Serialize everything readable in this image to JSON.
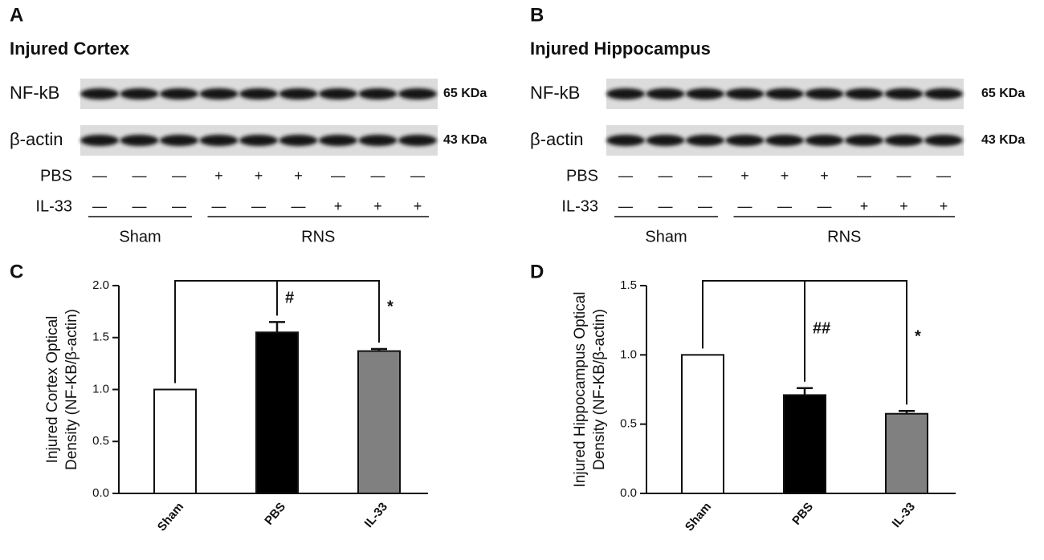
{
  "panels": [
    {
      "letter": "A",
      "title": "Injured Cortex",
      "rows": [
        {
          "label": "NF-kB",
          "size": "65 KDa"
        },
        {
          "label": "β-actin",
          "size": "43 KDa"
        }
      ],
      "treatments": [
        {
          "label": "PBS",
          "marks": [
            "—",
            "—",
            "—",
            "+",
            "+",
            "+",
            "—",
            "—",
            "—"
          ]
        },
        {
          "label": "IL-33",
          "marks": [
            "—",
            "—",
            "—",
            "—",
            "—",
            "—",
            "+",
            "+",
            "+"
          ]
        }
      ],
      "groups": [
        "Sham",
        "RNS"
      ]
    },
    {
      "letter": "B",
      "title": "Injured Hippocampus",
      "rows": [
        {
          "label": "NF-kB",
          "size": "65 KDa"
        },
        {
          "label": "β-actin",
          "size": "43 KDa"
        }
      ],
      "treatments": [
        {
          "label": "PBS",
          "marks": [
            "—",
            "—",
            "—",
            "+",
            "+",
            "+",
            "—",
            "—",
            "—"
          ]
        },
        {
          "label": "IL-33",
          "marks": [
            "—",
            "—",
            "—",
            "—",
            "—",
            "—",
            "+",
            "+",
            "+"
          ]
        }
      ],
      "groups": [
        "Sham",
        "RNS"
      ]
    }
  ],
  "chart_data": [
    {
      "type": "bar",
      "label": "C",
      "ylabel": [
        "Injured Cortex Optical",
        "Density (NF-KB/β-actin)"
      ],
      "categories": [
        "Sham",
        "PBS",
        "IL-33"
      ],
      "values": [
        1.0,
        1.55,
        1.37
      ],
      "errors": [
        null,
        0.1,
        0.02
      ],
      "colors": [
        "#ffffff",
        "#000000",
        "#808080"
      ],
      "ylim": [
        0,
        2.0
      ],
      "yticks": [
        {
          "value": 0,
          "label": "0.0"
        },
        {
          "value": 0.5,
          "label": "0.5"
        },
        {
          "value": 1,
          "label": "1.0"
        },
        {
          "value": 1.5,
          "label": "1.5"
        },
        {
          "value": 2,
          "label": "2.0"
        }
      ],
      "annotations": [
        "#",
        "*"
      ]
    },
    {
      "type": "bar",
      "label": "D",
      "ylabel": [
        "Injured Hippocampus Optical",
        "Density (NF-KB/β-actin)"
      ],
      "categories": [
        "Sham",
        "PBS",
        "IL-33"
      ],
      "values": [
        1.0,
        0.71,
        0.575
      ],
      "errors": [
        null,
        0.05,
        0.02
      ],
      "colors": [
        "#ffffff",
        "#000000",
        "#808080"
      ],
      "ylim": [
        0,
        1.5
      ],
      "yticks": [
        {
          "value": 0,
          "label": "0.0"
        },
        {
          "value": 0.5,
          "label": "0.5"
        },
        {
          "value": 1,
          "label": "1.0"
        },
        {
          "value": 1.5,
          "label": "1.5"
        }
      ],
      "annotations": [
        "##",
        "*"
      ]
    }
  ]
}
